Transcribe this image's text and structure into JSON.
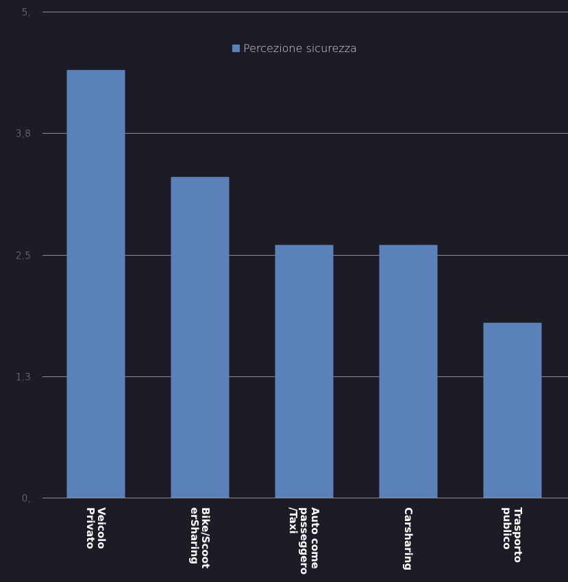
{
  "chart_data": {
    "type": "bar",
    "categories": [
      [
        "Veicolo",
        "Privato"
      ],
      [
        "Bike/Scoot",
        "erSharing"
      ],
      [
        "Auto come",
        "passeggero",
        "/Taxi"
      ],
      [
        "Carsharing"
      ],
      [
        "Trasporto",
        "publico"
      ]
    ],
    "series": [
      {
        "name": "Percezione sicurezza",
        "values": [
          4.4,
          3.3,
          2.6,
          2.6,
          1.8
        ]
      }
    ],
    "y_ticks": [
      "0,",
      "1,3",
      "2,5",
      "3,8",
      "5,"
    ],
    "y_tick_values": [
      0,
      1.25,
      2.5,
      3.75,
      5
    ],
    "ylim": [
      0,
      5
    ],
    "grid": true,
    "legend_position": "top-center",
    "colors": {
      "background": "#1c1b26",
      "bar": "#5b82b8",
      "grid": "#8c8c94",
      "tick_text": "#8f8f99",
      "category_text": "#ffffff",
      "legend_text": "#d9d9e0"
    }
  }
}
